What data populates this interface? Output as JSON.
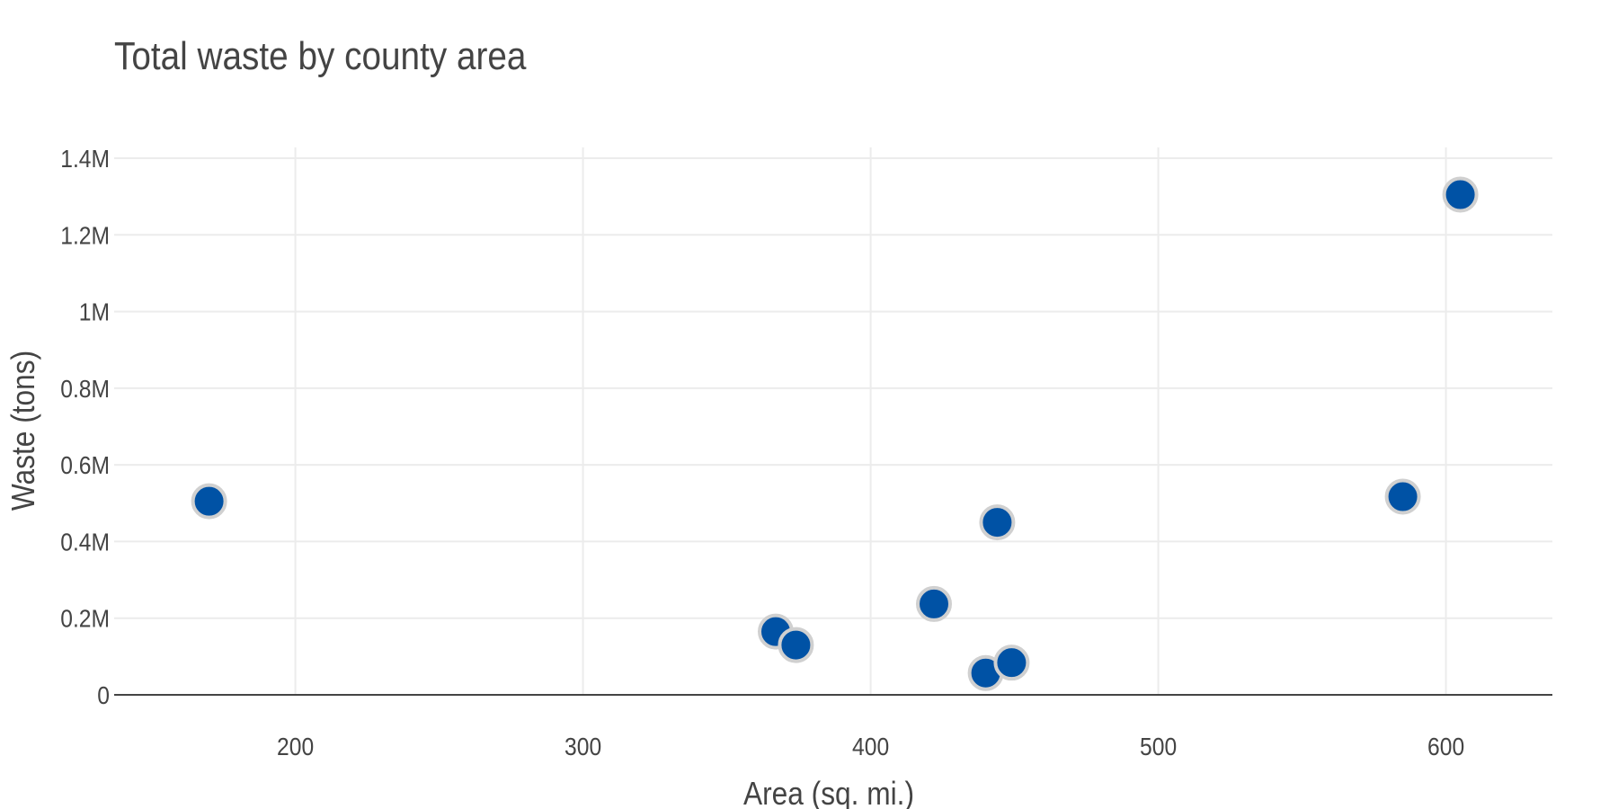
{
  "chart_data": {
    "type": "scatter",
    "title": "Total waste by county area",
    "xlabel": "Area (sq. mi.)",
    "ylabel": "Waste (tons)",
    "xlim": [
      137,
      637
    ],
    "ylim": [
      0,
      1400000
    ],
    "x_ticks": [
      {
        "value": 200,
        "label": "200"
      },
      {
        "value": 300,
        "label": "300"
      },
      {
        "value": 400,
        "label": "400"
      },
      {
        "value": 500,
        "label": "500"
      },
      {
        "value": 600,
        "label": "600"
      }
    ],
    "y_ticks": [
      {
        "value": 0,
        "label": "0"
      },
      {
        "value": 200000,
        "label": "0.2M"
      },
      {
        "value": 400000,
        "label": "0.4M"
      },
      {
        "value": 600000,
        "label": "0.6M"
      },
      {
        "value": 800000,
        "label": "0.8M"
      },
      {
        "value": 1000000,
        "label": "1M"
      },
      {
        "value": 1200000,
        "label": "1.2M"
      },
      {
        "value": 1400000,
        "label": "1.4M"
      }
    ],
    "grid": true,
    "marker_color": "#0052a5",
    "marker_outline": "#d0d0d0",
    "points": [
      {
        "x": 170,
        "y": 505000
      },
      {
        "x": 367,
        "y": 165000
      },
      {
        "x": 374,
        "y": 130000
      },
      {
        "x": 422,
        "y": 237000
      },
      {
        "x": 440,
        "y": 57000
      },
      {
        "x": 444,
        "y": 450000
      },
      {
        "x": 449,
        "y": 84000
      },
      {
        "x": 585,
        "y": 517000
      },
      {
        "x": 605,
        "y": 1305000
      }
    ]
  }
}
